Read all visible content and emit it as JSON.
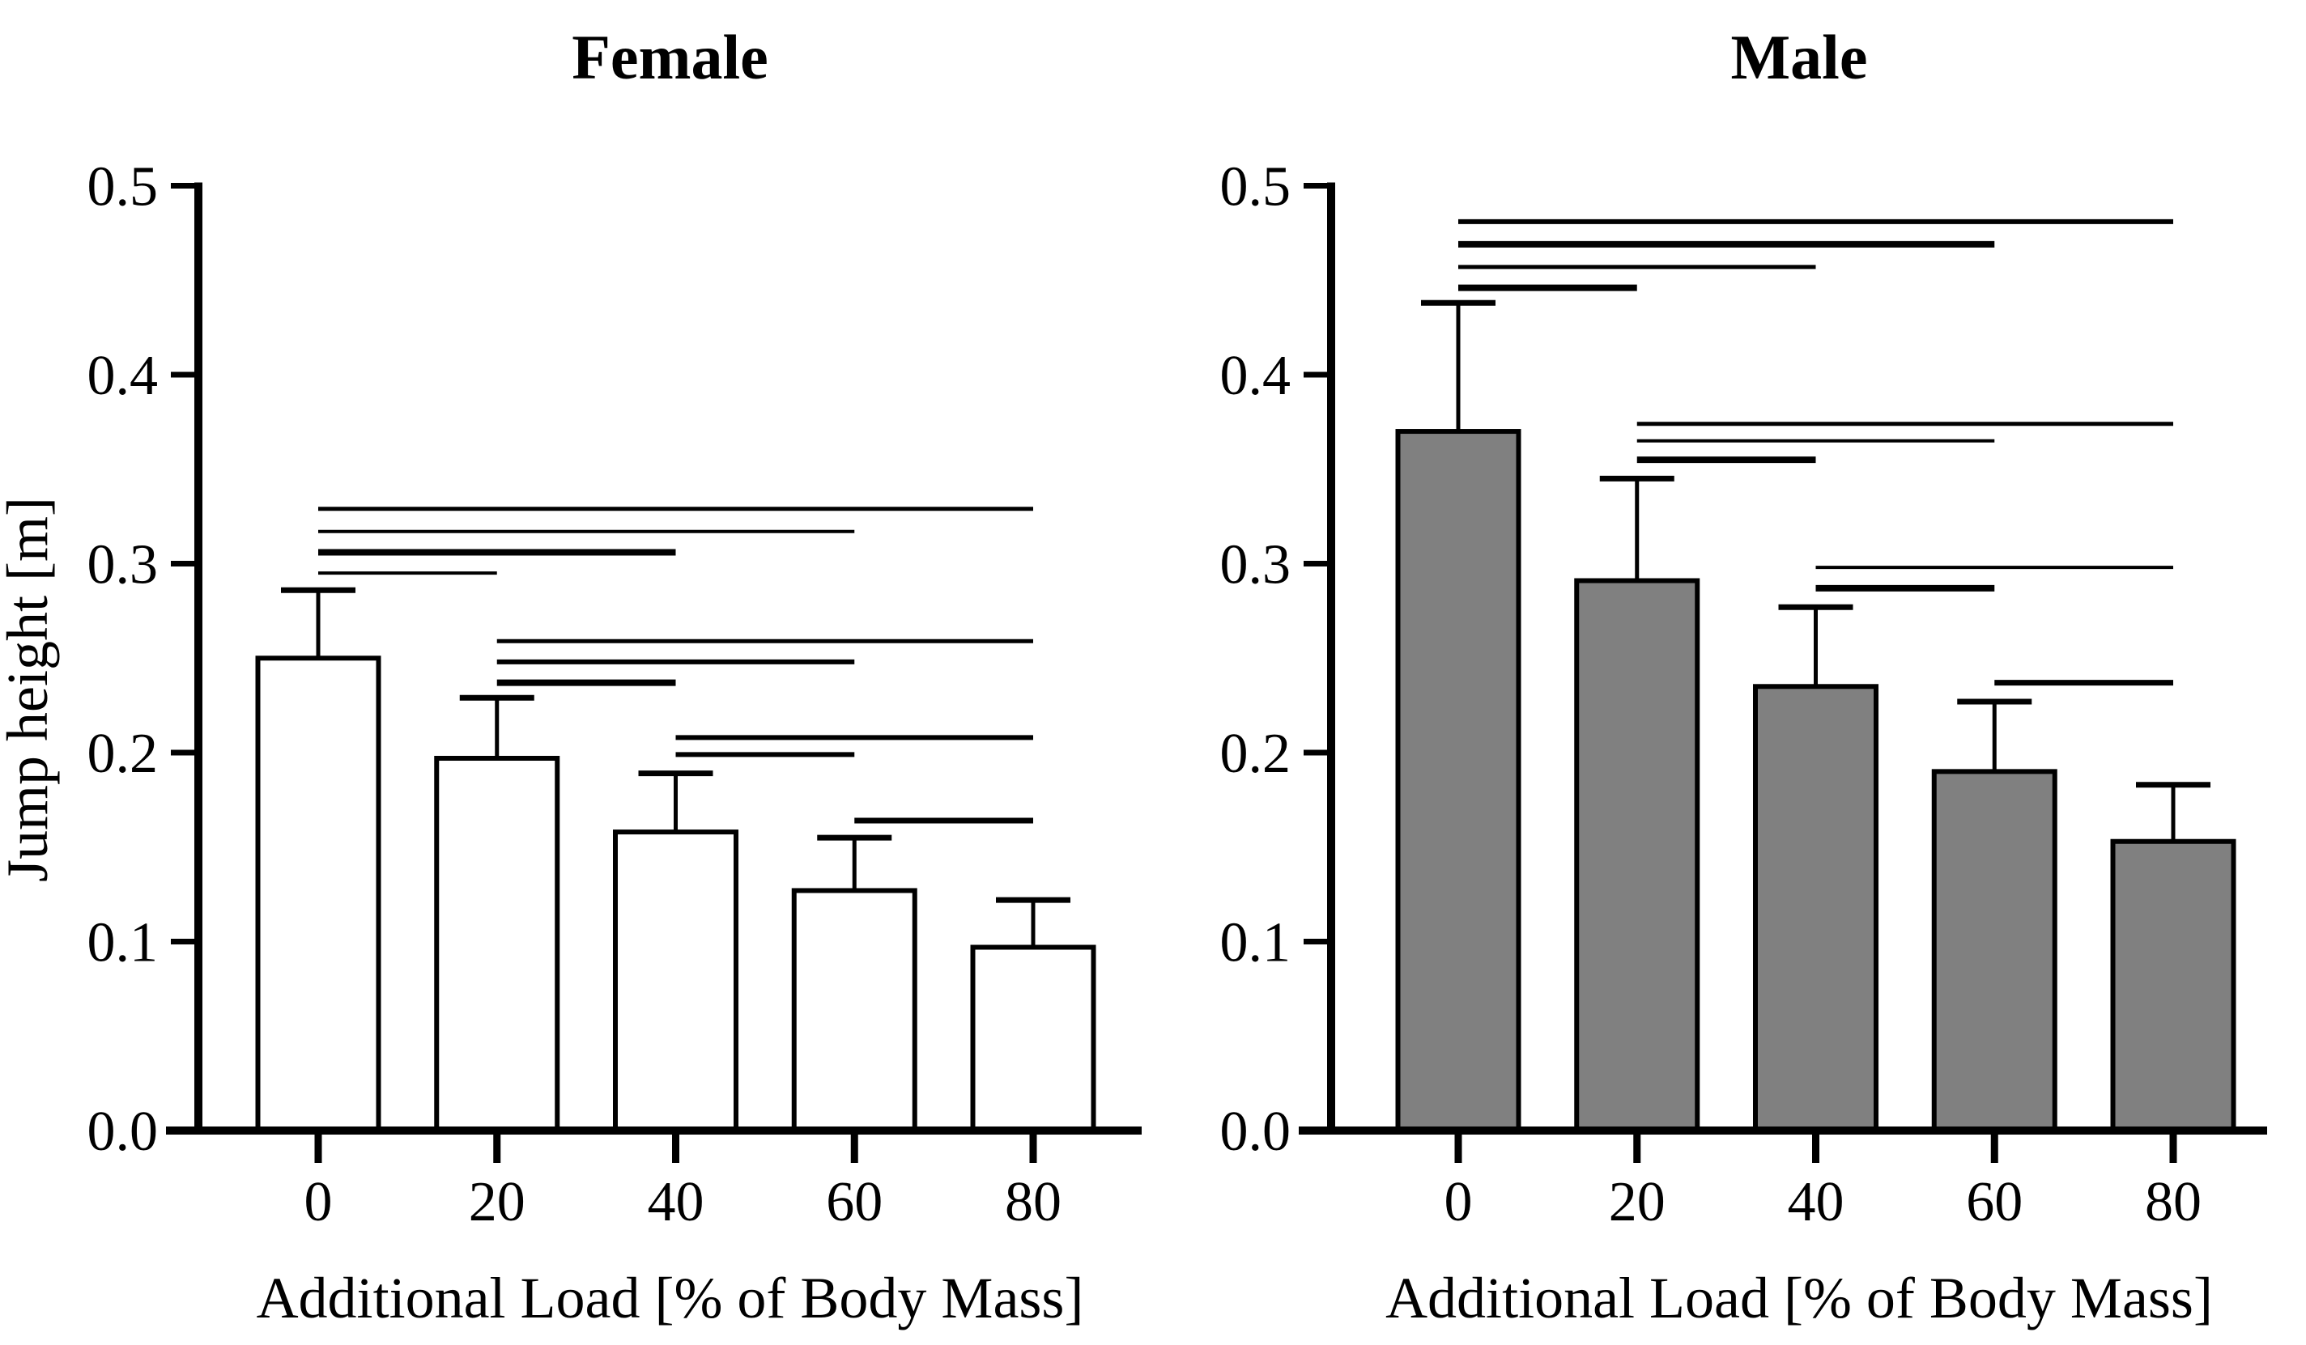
{
  "figure": {
    "background": "#ffffff",
    "ink_color": "#000000"
  },
  "chart_data": [
    {
      "type": "bar",
      "title": "Female",
      "xlabel": "Additional Load [% of Body Mass]",
      "ylabel": "Jump height [m]",
      "categories": [
        "0",
        "20",
        "40",
        "60",
        "80"
      ],
      "values": [
        0.25,
        0.197,
        0.158,
        0.127,
        0.097
      ],
      "errors_sd_upper": [
        0.036,
        0.032,
        0.031,
        0.028,
        0.025
      ],
      "ylim": [
        0.0,
        0.5
      ],
      "yticks": [
        "0.0",
        "0.1",
        "0.2",
        "0.3",
        "0.4",
        "0.5"
      ],
      "grid": false,
      "legend_position": "none",
      "bar_fill": "#ffffff",
      "bar_stroke": "#000000",
      "significance_lines": [
        {
          "from": 0,
          "to": 4,
          "y": 0.329,
          "lw": 5
        },
        {
          "from": 0,
          "to": 3,
          "y": 0.317,
          "lw": 4
        },
        {
          "from": 0,
          "to": 2,
          "y": 0.306,
          "lw": 8
        },
        {
          "from": 0,
          "to": 1,
          "y": 0.295,
          "lw": 4
        },
        {
          "from": 1,
          "to": 4,
          "y": 0.259,
          "lw": 5
        },
        {
          "from": 1,
          "to": 3,
          "y": 0.248,
          "lw": 6
        },
        {
          "from": 1,
          "to": 2,
          "y": 0.237,
          "lw": 8
        },
        {
          "from": 2,
          "to": 4,
          "y": 0.208,
          "lw": 6
        },
        {
          "from": 2,
          "to": 3,
          "y": 0.199,
          "lw": 6
        },
        {
          "from": 3,
          "to": 4,
          "y": 0.164,
          "lw": 7
        }
      ]
    },
    {
      "type": "bar",
      "title": "Male",
      "xlabel": "Additional Load [% of Body Mass]",
      "ylabel": null,
      "categories": [
        "0",
        "20",
        "40",
        "60",
        "80"
      ],
      "values": [
        0.37,
        0.291,
        0.235,
        0.19,
        0.153
      ],
      "errors_sd_upper": [
        0.068,
        0.054,
        0.042,
        0.037,
        0.03
      ],
      "ylim": [
        0.0,
        0.5
      ],
      "yticks": [
        "0.0",
        "0.1",
        "0.2",
        "0.3",
        "0.4",
        "0.5"
      ],
      "grid": false,
      "legend_position": "none",
      "bar_fill": "#808080",
      "bar_stroke": "#000000",
      "significance_lines": [
        {
          "from": 0,
          "to": 4,
          "y": 0.481,
          "lw": 6
        },
        {
          "from": 0,
          "to": 3,
          "y": 0.469,
          "lw": 8
        },
        {
          "from": 0,
          "to": 2,
          "y": 0.457,
          "lw": 5
        },
        {
          "from": 0,
          "to": 1,
          "y": 0.446,
          "lw": 8
        },
        {
          "from": 1,
          "to": 4,
          "y": 0.374,
          "lw": 5
        },
        {
          "from": 1,
          "to": 3,
          "y": 0.365,
          "lw": 4
        },
        {
          "from": 1,
          "to": 2,
          "y": 0.355,
          "lw": 8
        },
        {
          "from": 2,
          "to": 4,
          "y": 0.298,
          "lw": 4
        },
        {
          "from": 2,
          "to": 3,
          "y": 0.287,
          "lw": 8
        },
        {
          "from": 3,
          "to": 4,
          "y": 0.237,
          "lw": 7
        }
      ]
    }
  ]
}
